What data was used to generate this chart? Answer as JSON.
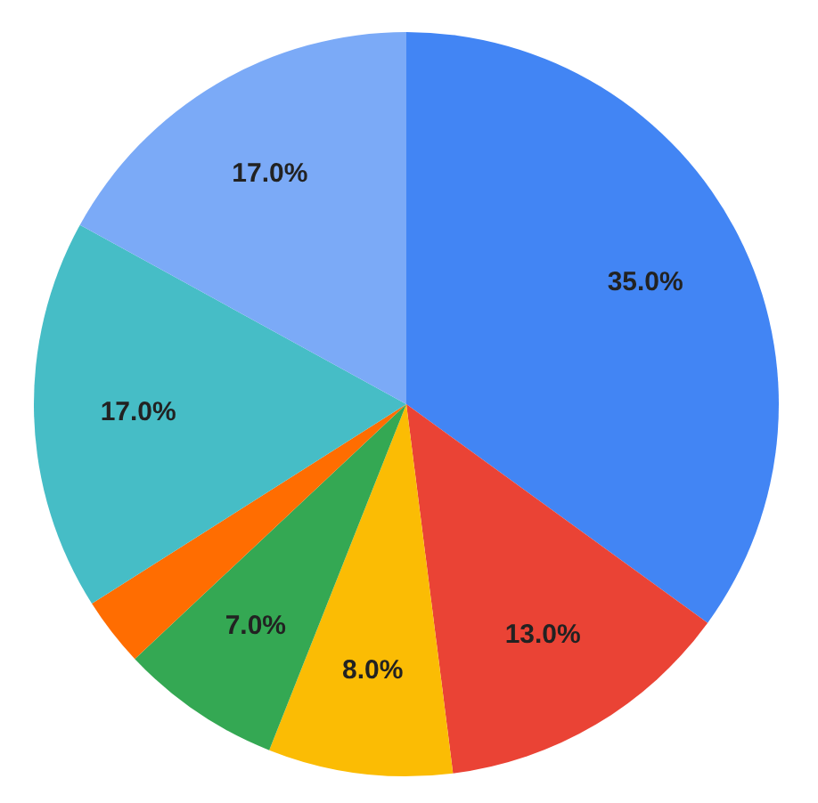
{
  "chart_data": {
    "type": "pie",
    "categories": [
      null,
      null,
      null,
      null,
      null,
      null,
      null
    ],
    "values": [
      35,
      13,
      8,
      7,
      3,
      17,
      17
    ],
    "colors": [
      "#4285f4",
      "#ea4335",
      "#fbbc04",
      "#34a853",
      "#ff6d01",
      "#46bdc6",
      "#7baaf7"
    ],
    "value_labels": [
      "35.0%",
      "13.0%",
      "8.0%",
      "7.0%",
      null,
      "17.0%",
      "17.0%"
    ]
  }
}
